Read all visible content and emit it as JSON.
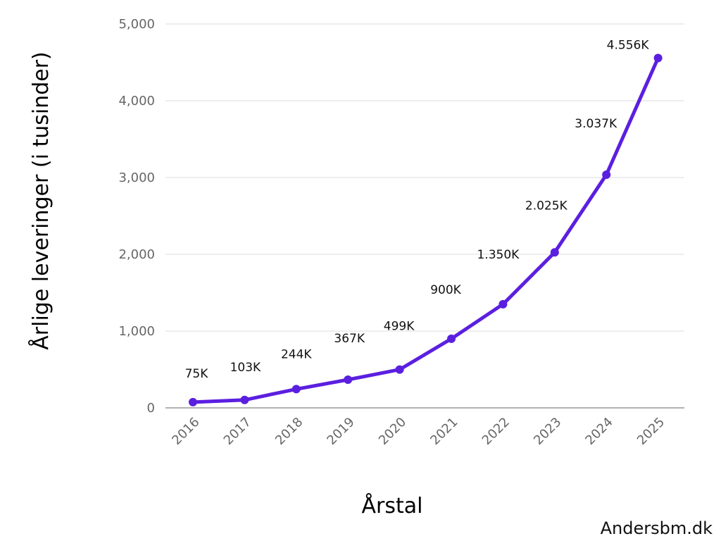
{
  "chart_data": {
    "type": "line",
    "title": "",
    "xlabel": "Årstal",
    "ylabel": "Årlige leveringer (i tusinder)",
    "x": [
      "2016",
      "2017",
      "2018",
      "2019",
      "2020",
      "2021",
      "2022",
      "2023",
      "2024",
      "2025"
    ],
    "values": [
      75,
      103,
      244,
      367,
      499,
      900,
      1350,
      2025,
      3037,
      4556
    ],
    "data_labels": [
      "75K",
      "103K",
      "244K",
      "367K",
      "499K",
      "900K",
      "1.350K",
      "2.025K",
      "3.037K",
      "4.556K"
    ],
    "ylim": [
      0,
      5000
    ],
    "yticks": [
      0,
      1000,
      2000,
      3000,
      4000,
      5000
    ],
    "ytick_labels": [
      "0",
      "1,000",
      "2,000",
      "3,000",
      "4,000",
      "5,000"
    ],
    "grid": true,
    "color": "#5b1fe0"
  },
  "watermark": "Andersbm.dk"
}
